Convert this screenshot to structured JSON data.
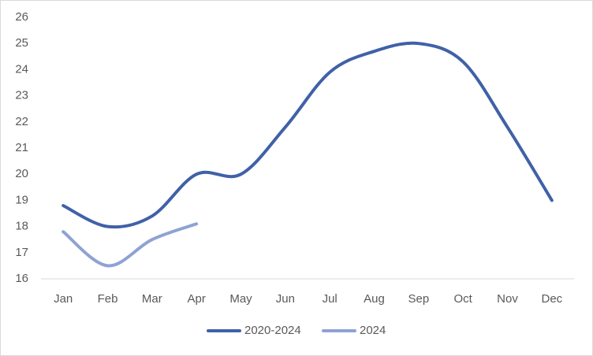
{
  "chart_data": {
    "type": "line",
    "categories": [
      "Jan",
      "Feb",
      "Mar",
      "Apr",
      "May",
      "Jun",
      "Jul",
      "Aug",
      "Sep",
      "Oct",
      "Nov",
      "Dec"
    ],
    "series": [
      {
        "name": "2020-2024",
        "color": "#4061a7",
        "values": [
          18.8,
          18.0,
          18.4,
          20.0,
          20.0,
          21.8,
          23.9,
          24.7,
          25.0,
          24.3,
          21.8,
          19.0
        ]
      },
      {
        "name": "2024",
        "color": "#8fa2d4",
        "values": [
          17.8,
          16.5,
          17.5,
          18.1,
          null,
          null,
          null,
          null,
          null,
          null,
          null,
          null
        ]
      }
    ],
    "ylim": [
      16,
      26
    ],
    "yticks": [
      16,
      17,
      18,
      19,
      20,
      21,
      22,
      23,
      24,
      25,
      26
    ],
    "smooth": true,
    "legend": "bottom"
  }
}
